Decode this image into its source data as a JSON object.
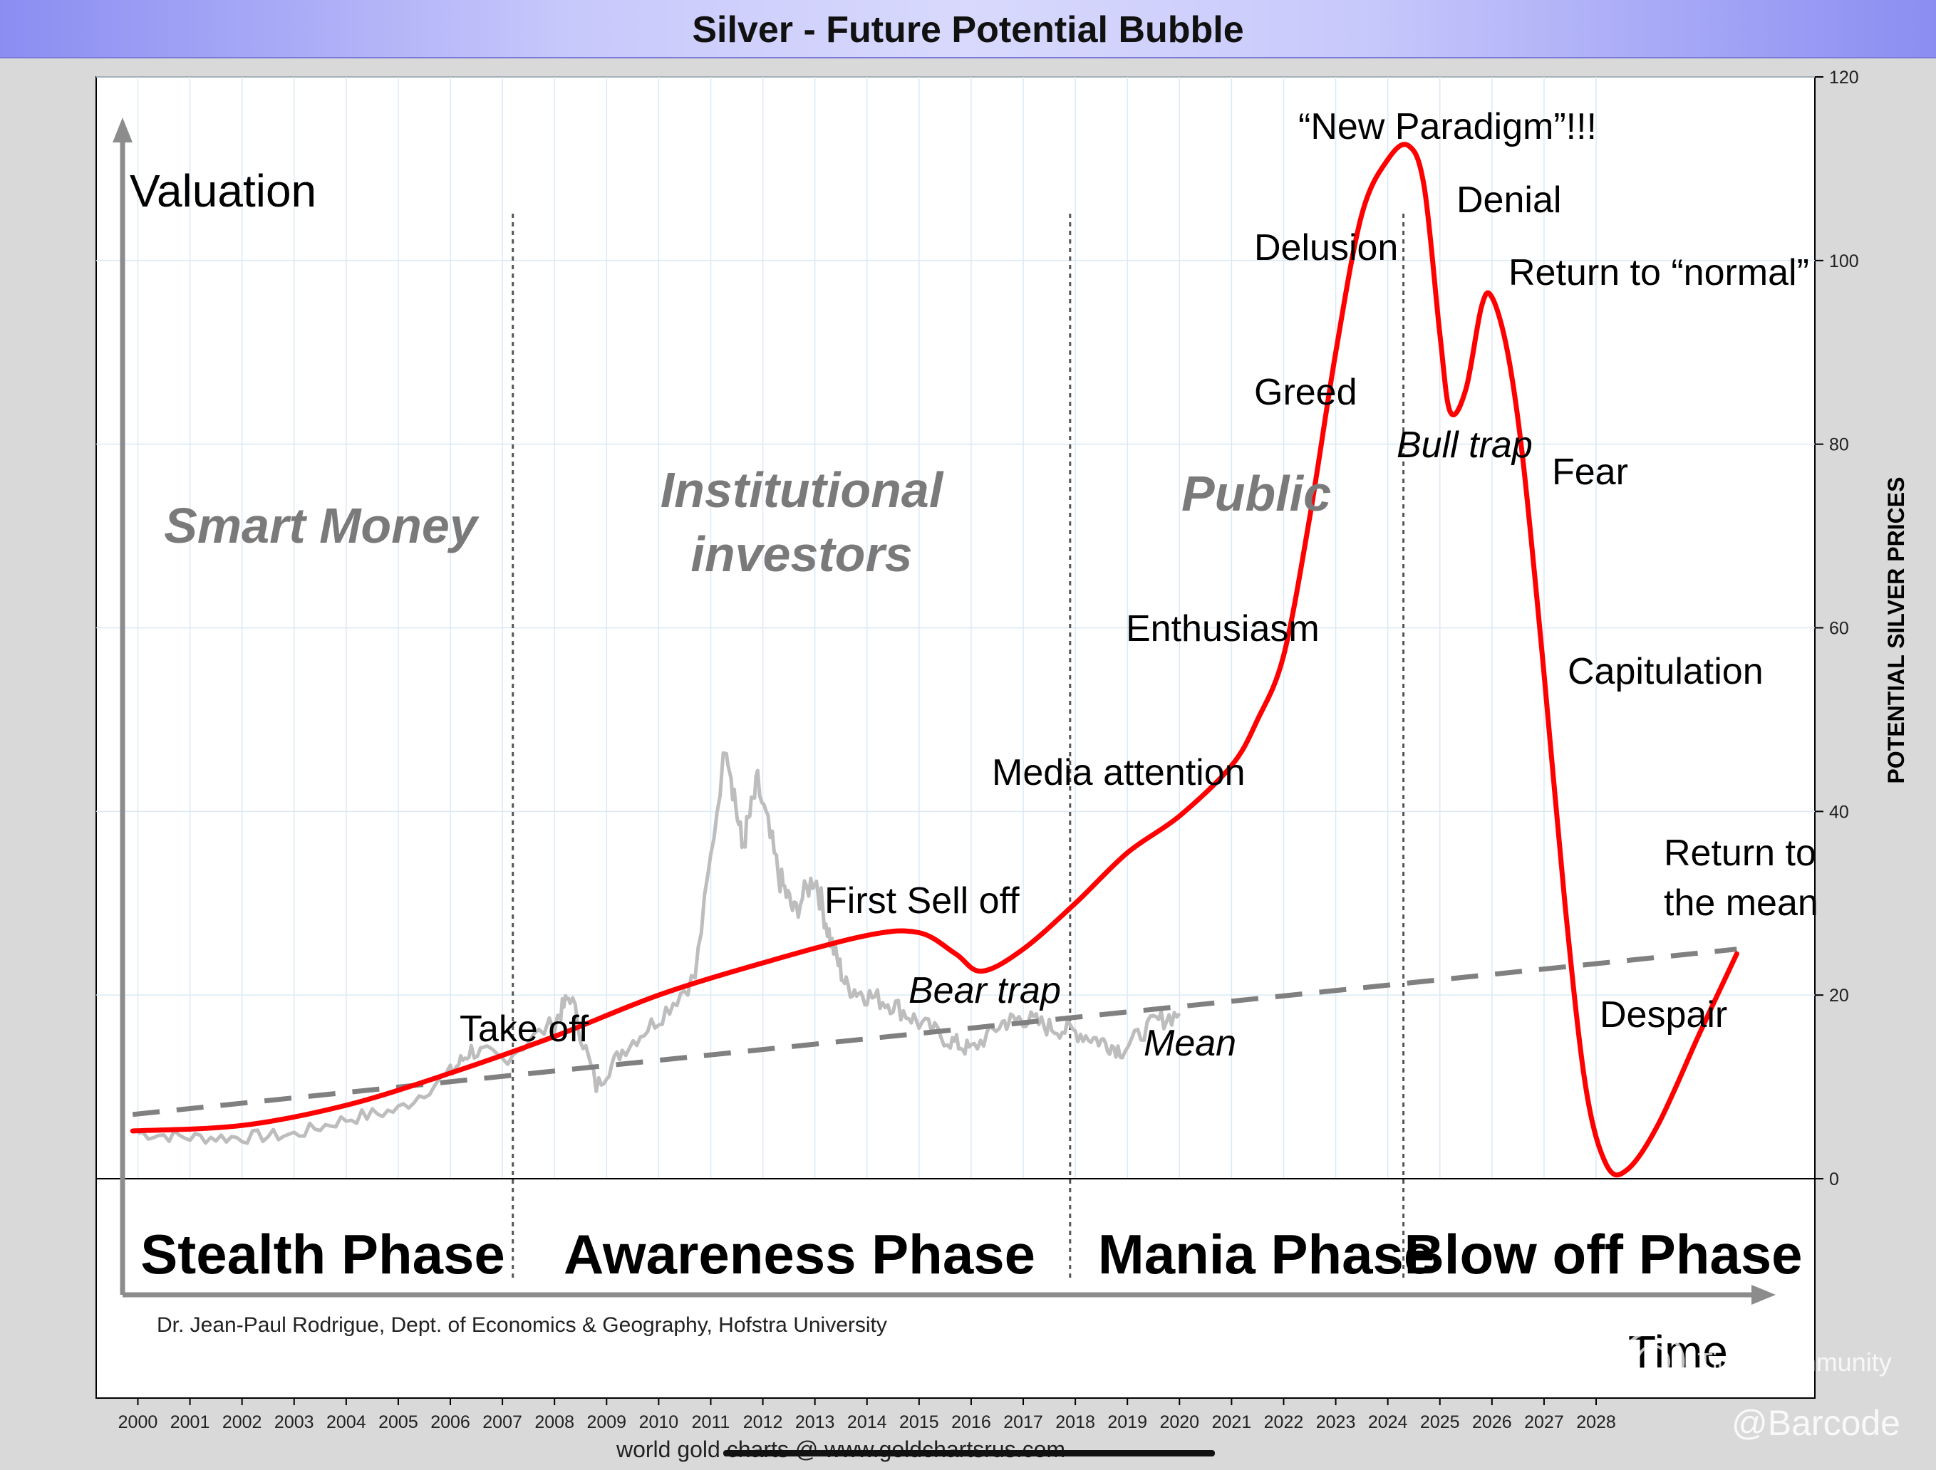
{
  "chart_data": {
    "type": "line",
    "title": "Silver - Future Potential Bubble",
    "ylabel": "POTENTIAL SILVER PRICES",
    "concept_axis_y": "Valuation",
    "concept_axis_x": "Time",
    "x_ticks": [
      "2000",
      "2001",
      "2002",
      "2003",
      "2004",
      "2005",
      "2006",
      "2007",
      "2008",
      "2009",
      "2010",
      "2011",
      "2012",
      "2013",
      "2014",
      "2015",
      "2016",
      "2017",
      "2018",
      "2019",
      "2020",
      "2021",
      "2022",
      "2023",
      "2024",
      "2025",
      "2026",
      "2027",
      "2028"
    ],
    "y_ticks": [
      0,
      20,
      40,
      60,
      80,
      100,
      120
    ],
    "ylim": [
      0,
      120
    ],
    "xlim": [
      1999.2,
      2032.2
    ],
    "series": [
      {
        "name": "",
        "color": "#ff0000",
        "style": "solid",
        "points": [
          [
            1999.9,
            5.2
          ],
          [
            2002,
            5.8
          ],
          [
            2004,
            8
          ],
          [
            2006,
            11.5
          ],
          [
            2008,
            15.5
          ],
          [
            2010,
            20
          ],
          [
            2012,
            23.5
          ],
          [
            2014,
            26.5
          ],
          [
            2015,
            26.8
          ],
          [
            2015.7,
            24.5
          ],
          [
            2016.2,
            22.6
          ],
          [
            2017,
            25
          ],
          [
            2018,
            30
          ],
          [
            2019,
            35.5
          ],
          [
            2020,
            39.5
          ],
          [
            2021,
            45
          ],
          [
            2021.5,
            50
          ],
          [
            2022,
            57
          ],
          [
            2022.5,
            72
          ],
          [
            2023,
            90
          ],
          [
            2023.5,
            105
          ],
          [
            2024,
            111
          ],
          [
            2024.4,
            112.5
          ],
          [
            2024.7,
            108
          ],
          [
            2025,
            92
          ],
          [
            2025.2,
            83.5
          ],
          [
            2025.5,
            86
          ],
          [
            2025.8,
            95
          ],
          [
            2026,
            96
          ],
          [
            2026.3,
            90
          ],
          [
            2026.6,
            78
          ],
          [
            2027,
            55
          ],
          [
            2027.4,
            30
          ],
          [
            2027.8,
            10
          ],
          [
            2028.2,
            1.5
          ],
          [
            2028.6,
            1
          ],
          [
            2029.2,
            6
          ],
          [
            2030,
            16
          ],
          [
            2030.7,
            24.5
          ]
        ]
      },
      {
        "name": "",
        "color": "#bdbdbd",
        "style": "solid",
        "points": [
          [
            2000,
            5
          ],
          [
            2001,
            4.5
          ],
          [
            2002,
            4.5
          ],
          [
            2003,
            4.8
          ],
          [
            2004,
            6.5
          ],
          [
            2005,
            7.5
          ],
          [
            2006,
            11.5
          ],
          [
            2006.4,
            14
          ],
          [
            2007,
            13
          ],
          [
            2008,
            17
          ],
          [
            2008.3,
            20
          ],
          [
            2008.8,
            10
          ],
          [
            2009.3,
            14
          ],
          [
            2010,
            17.5
          ],
          [
            2010.7,
            22
          ],
          [
            2011.3,
            48
          ],
          [
            2011.6,
            36
          ],
          [
            2011.9,
            43
          ],
          [
            2012.3,
            33
          ],
          [
            2012.6,
            29
          ],
          [
            2013,
            33
          ],
          [
            2013.3,
            26
          ],
          [
            2013.6,
            21
          ],
          [
            2014,
            20
          ],
          [
            2014.5,
            19
          ],
          [
            2015,
            17
          ],
          [
            2015.6,
            15
          ],
          [
            2016,
            14
          ],
          [
            2016.6,
            17
          ],
          [
            2017,
            17.5
          ],
          [
            2017.5,
            16.5
          ],
          [
            2018,
            16
          ],
          [
            2018.5,
            15
          ],
          [
            2018.9,
            14
          ],
          [
            2019.5,
            17
          ],
          [
            2020,
            18
          ]
        ]
      },
      {
        "name": "",
        "color": "#808080",
        "style": "dashed",
        "points": [
          [
            1999.9,
            7
          ],
          [
            2030.7,
            25
          ]
        ]
      }
    ],
    "phases": [
      {
        "name": "Stealth Phase",
        "start": 1999.2,
        "end": 2007.2
      },
      {
        "name": "Awareness Phase",
        "start": 2007.2,
        "end": 2017.9
      },
      {
        "name": "Mania Phase",
        "start": 2017.9,
        "end": 2024.3
      },
      {
        "name": "Blow off Phase",
        "start": 2024.3,
        "end": 2032.2
      }
    ],
    "groups": [
      "Smart Money",
      "Institutional",
      "investors",
      "Public"
    ],
    "annotations": [
      "Take off",
      "First Sell off",
      "Bear trap",
      "Mean",
      "Media attention",
      "Enthusiasm",
      "Greed",
      "Delusion",
      "“New Paradigm”!!!",
      "Denial",
      "Bull trap",
      "Return to “normal”",
      "Fear",
      "Capitulation",
      "Despair",
      "Return to",
      "the mean"
    ],
    "credit": "Dr. Jean-Paul Rodrigue, Dept. of Economics & Geography, Hofstra University",
    "source": "world gold charts @ www.goldchartsrus.com",
    "watermark": "Tiger Community",
    "handle": "@Barcode"
  }
}
